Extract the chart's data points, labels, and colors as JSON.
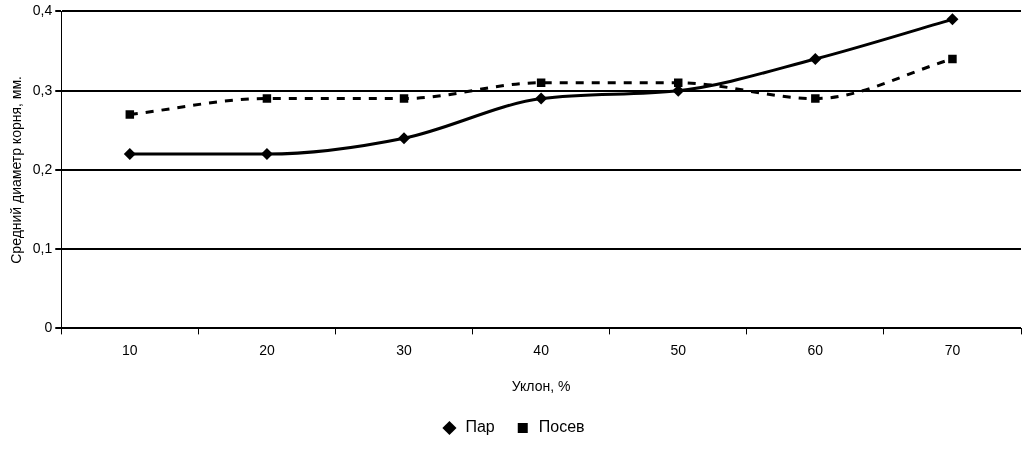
{
  "chart_data": {
    "type": "line",
    "xlabel": "Уклон, %",
    "ylabel": "Средний диаметр корня, мм.",
    "categories": [
      "10",
      "20",
      "30",
      "40",
      "50",
      "60",
      "70"
    ],
    "series": [
      {
        "name": "Пар",
        "color": "#000000",
        "marker": "diamond",
        "line_style": "solid",
        "values": [
          0.22,
          0.22,
          0.24,
          0.29,
          0.3,
          0.34,
          0.39
        ]
      },
      {
        "name": "Посев",
        "color": "#000000",
        "marker": "square",
        "line_style": "dashed",
        "values": [
          0.27,
          0.29,
          0.29,
          0.31,
          0.31,
          0.29,
          0.34
        ]
      }
    ],
    "ylim": [
      0,
      0.4
    ],
    "yticks": [
      0,
      {
        "value": 0.1,
        "label": "0,1"
      },
      {
        "value": 0.2,
        "label": "0,2"
      },
      {
        "value": 0.3,
        "label": "0,3"
      },
      {
        "value": 0.4,
        "label": "0,4"
      }
    ],
    "grid": "y",
    "legend": "bottom"
  }
}
